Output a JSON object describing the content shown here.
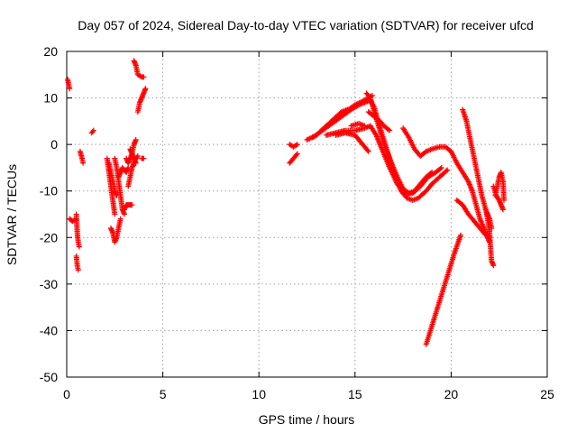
{
  "chart_data": {
    "type": "scatter",
    "title": "Day 057 of 2024, Sidereal Day-to-day VTEC variation (SDTVAR) for receiver ufcd",
    "xlabel": "GPS time / hours",
    "ylabel": "SDTVAR / TECUs",
    "xlim": [
      0,
      25
    ],
    "ylim": [
      -50,
      20
    ],
    "xticks": [
      0,
      5,
      10,
      15,
      20,
      25
    ],
    "yticks": [
      -50,
      -40,
      -30,
      -20,
      -10,
      0,
      10,
      20
    ],
    "grid": true,
    "marker": "+",
    "color": "#ff0000",
    "series": [
      {
        "name": "sdtvar",
        "tracks": [
          [
            [
              0.05,
              14
            ],
            [
              0.1,
              13
            ],
            [
              0.15,
              12
            ]
          ],
          [
            [
              0.15,
              -16
            ],
            [
              0.3,
              -16.5
            ],
            [
              0.5,
              -16
            ]
          ],
          [
            [
              0.5,
              -15
            ],
            [
              0.55,
              -19
            ],
            [
              0.6,
              -21
            ],
            [
              0.65,
              -22
            ]
          ],
          [
            [
              0.5,
              -24
            ],
            [
              0.55,
              -26
            ],
            [
              0.6,
              -27
            ]
          ],
          [
            [
              0.7,
              -1.5
            ],
            [
              0.8,
              -3
            ],
            [
              0.85,
              -4
            ]
          ],
          [
            [
              1.3,
              2.5
            ],
            [
              1.4,
              3
            ]
          ],
          [
            [
              2.1,
              -3
            ],
            [
              2.2,
              -6
            ],
            [
              2.3,
              -9
            ],
            [
              2.4,
              -12
            ],
            [
              2.5,
              -15
            ]
          ],
          [
            [
              2.2,
              -4
            ],
            [
              2.3,
              -6
            ],
            [
              2.4,
              -8
            ],
            [
              2.5,
              -10
            ],
            [
              2.6,
              -11
            ]
          ],
          [
            [
              2.3,
              -18
            ],
            [
              2.4,
              -19
            ],
            [
              2.5,
              -21
            ],
            [
              2.6,
              -20
            ],
            [
              2.7,
              -18
            ],
            [
              2.8,
              -16
            ]
          ],
          [
            [
              2.5,
              -3
            ],
            [
              2.6,
              -5
            ],
            [
              2.7,
              -8
            ],
            [
              2.8,
              -11
            ],
            [
              2.9,
              -14
            ],
            [
              3.0,
              -15
            ]
          ],
          [
            [
              2.7,
              -7
            ],
            [
              2.8,
              -6
            ],
            [
              2.9,
              -5
            ],
            [
              3.0,
              -5.5
            ],
            [
              3.1,
              -6
            ],
            [
              3.2,
              -5
            ]
          ],
          [
            [
              3.0,
              -14
            ],
            [
              3.1,
              -13
            ],
            [
              3.2,
              -13
            ],
            [
              3.3,
              -13
            ],
            [
              3.4,
              -13
            ]
          ],
          [
            [
              3.1,
              -3
            ],
            [
              3.2,
              -4
            ],
            [
              3.3,
              -3
            ],
            [
              3.4,
              -2
            ],
            [
              3.5,
              0
            ],
            [
              3.6,
              1
            ]
          ],
          [
            [
              3.2,
              -9
            ],
            [
              3.3,
              -7
            ],
            [
              3.4,
              -5
            ],
            [
              3.5,
              -4
            ],
            [
              3.6,
              -3
            ],
            [
              3.7,
              -2.5
            ]
          ],
          [
            [
              3.3,
              -1
            ],
            [
              3.4,
              -2
            ],
            [
              3.5,
              -3
            ],
            [
              3.6,
              -4
            ]
          ],
          [
            [
              3.5,
              18
            ],
            [
              3.6,
              17
            ],
            [
              3.7,
              15
            ],
            [
              3.9,
              14.5
            ],
            [
              4.0,
              14.5
            ]
          ],
          [
            [
              3.7,
              7
            ],
            [
              3.75,
              8
            ],
            [
              3.8,
              9
            ],
            [
              3.9,
              10
            ],
            [
              4.0,
              11
            ],
            [
              4.1,
              12
            ]
          ],
          [
            [
              3.9,
              -3
            ],
            [
              4.0,
              -3
            ]
          ],
          [
            [
              11.6,
              -4
            ],
            [
              11.8,
              -3
            ],
            [
              12.0,
              -2
            ]
          ],
          [
            [
              11.6,
              0
            ],
            [
              11.8,
              -0.5
            ],
            [
              12.0,
              0
            ]
          ],
          [
            [
              12.5,
              1
            ],
            [
              13.0,
              2
            ],
            [
              13.5,
              4
            ],
            [
              14.0,
              5.5
            ],
            [
              14.5,
              7
            ],
            [
              15.0,
              8.5
            ],
            [
              15.5,
              9.5
            ],
            [
              15.9,
              10.5
            ]
          ],
          [
            [
              12.8,
              1.5
            ],
            [
              13.3,
              3
            ],
            [
              13.8,
              4.5
            ],
            [
              14.3,
              6
            ],
            [
              14.8,
              7.5
            ],
            [
              15.2,
              8.5
            ],
            [
              15.5,
              9
            ],
            [
              15.8,
              9.5
            ],
            [
              16.0,
              8
            ],
            [
              16.2,
              5
            ],
            [
              16.5,
              1
            ],
            [
              16.8,
              -3
            ],
            [
              17.1,
              -7
            ],
            [
              17.4,
              -10
            ],
            [
              17.7,
              -11.5
            ],
            [
              18.0,
              -12
            ],
            [
              18.3,
              -11.5
            ],
            [
              18.7,
              -10
            ],
            [
              19.0,
              -8.5
            ],
            [
              19.4,
              -7
            ],
            [
              19.8,
              -5.5
            ]
          ],
          [
            [
              13.4,
              3.5
            ],
            [
              13.9,
              5.5
            ],
            [
              14.3,
              7
            ],
            [
              14.6,
              7.5
            ]
          ],
          [
            [
              13.5,
              2
            ],
            [
              14.0,
              2.5
            ],
            [
              14.5,
              3
            ],
            [
              15.0,
              3
            ],
            [
              15.5,
              3.5
            ],
            [
              15.8,
              4
            ],
            [
              16.1,
              2
            ],
            [
              16.4,
              -1
            ],
            [
              16.8,
              -5
            ],
            [
              17.2,
              -8.5
            ],
            [
              17.6,
              -10.5
            ],
            [
              18.0,
              -10.5
            ],
            [
              18.4,
              -9
            ],
            [
              18.8,
              -7
            ],
            [
              19.2,
              -6
            ],
            [
              19.5,
              -5
            ]
          ],
          [
            [
              14.0,
              2
            ],
            [
              14.5,
              2.5
            ],
            [
              15.0,
              2
            ],
            [
              15.4,
              0
            ],
            [
              15.7,
              -1.5
            ]
          ],
          [
            [
              14.8,
              4
            ],
            [
              15.2,
              4.5
            ],
            [
              15.5,
              4
            ]
          ],
          [
            [
              15.6,
              11
            ],
            [
              15.8,
              10
            ],
            [
              16.0,
              7
            ],
            [
              16.3,
              3
            ],
            [
              16.6,
              -1
            ],
            [
              16.9,
              -4
            ],
            [
              17.2,
              -7
            ],
            [
              17.5,
              -9.5
            ],
            [
              17.8,
              -10.5
            ],
            [
              18.1,
              -10
            ],
            [
              18.4,
              -8.5
            ],
            [
              18.7,
              -7
            ],
            [
              19.0,
              -6
            ]
          ],
          [
            [
              15.7,
              7
            ],
            [
              16.0,
              6
            ],
            [
              16.3,
              5
            ],
            [
              16.5,
              4
            ],
            [
              16.8,
              3
            ]
          ],
          [
            [
              17.5,
              3.5
            ],
            [
              17.8,
              1.5
            ],
            [
              18.1,
              -1
            ],
            [
              18.4,
              -2.5
            ],
            [
              18.7,
              -1.5
            ],
            [
              19.0,
              -1
            ],
            [
              19.4,
              -0.5
            ],
            [
              19.7,
              -0.5
            ],
            [
              20.0,
              -1.5
            ],
            [
              20.3,
              -4
            ],
            [
              20.6,
              -6
            ],
            [
              20.9,
              -8
            ],
            [
              21.1,
              -10
            ],
            [
              21.3,
              -13
            ],
            [
              21.5,
              -16
            ],
            [
              21.7,
              -18
            ],
            [
              21.9,
              -20
            ],
            [
              22.0,
              -21
            ]
          ],
          [
            [
              18.7,
              -43
            ],
            [
              19.0,
              -39
            ],
            [
              19.3,
              -35
            ],
            [
              19.6,
              -31
            ],
            [
              19.9,
              -27
            ],
            [
              20.2,
              -23
            ],
            [
              20.5,
              -19.5
            ]
          ],
          [
            [
              20.3,
              -12
            ],
            [
              20.6,
              -13
            ],
            [
              20.9,
              -15
            ],
            [
              21.2,
              -16.5
            ],
            [
              21.5,
              -18
            ],
            [
              21.8,
              -19.5
            ],
            [
              22.0,
              -20
            ]
          ],
          [
            [
              20.6,
              7.5
            ],
            [
              20.8,
              5
            ],
            [
              21.0,
              1
            ],
            [
              21.2,
              -3
            ],
            [
              21.4,
              -7
            ],
            [
              21.6,
              -11
            ],
            [
              21.8,
              -14
            ],
            [
              22.0,
              -16
            ],
            [
              22.1,
              -18
            ]
          ],
          [
            [
              21.8,
              -14
            ],
            [
              21.9,
              -16
            ],
            [
              22.0,
              -19
            ],
            [
              22.05,
              -22
            ],
            [
              22.1,
              -25
            ],
            [
              22.2,
              -26
            ]
          ],
          [
            [
              22.2,
              -9
            ],
            [
              22.35,
              -11
            ],
            [
              22.5,
              -12
            ],
            [
              22.6,
              -13
            ],
            [
              22.7,
              -14
            ]
          ],
          [
            [
              22.3,
              -11
            ],
            [
              22.4,
              -9
            ],
            [
              22.5,
              -7
            ],
            [
              22.6,
              -6
            ],
            [
              22.7,
              -8
            ],
            [
              22.75,
              -12
            ]
          ]
        ]
      }
    ]
  }
}
